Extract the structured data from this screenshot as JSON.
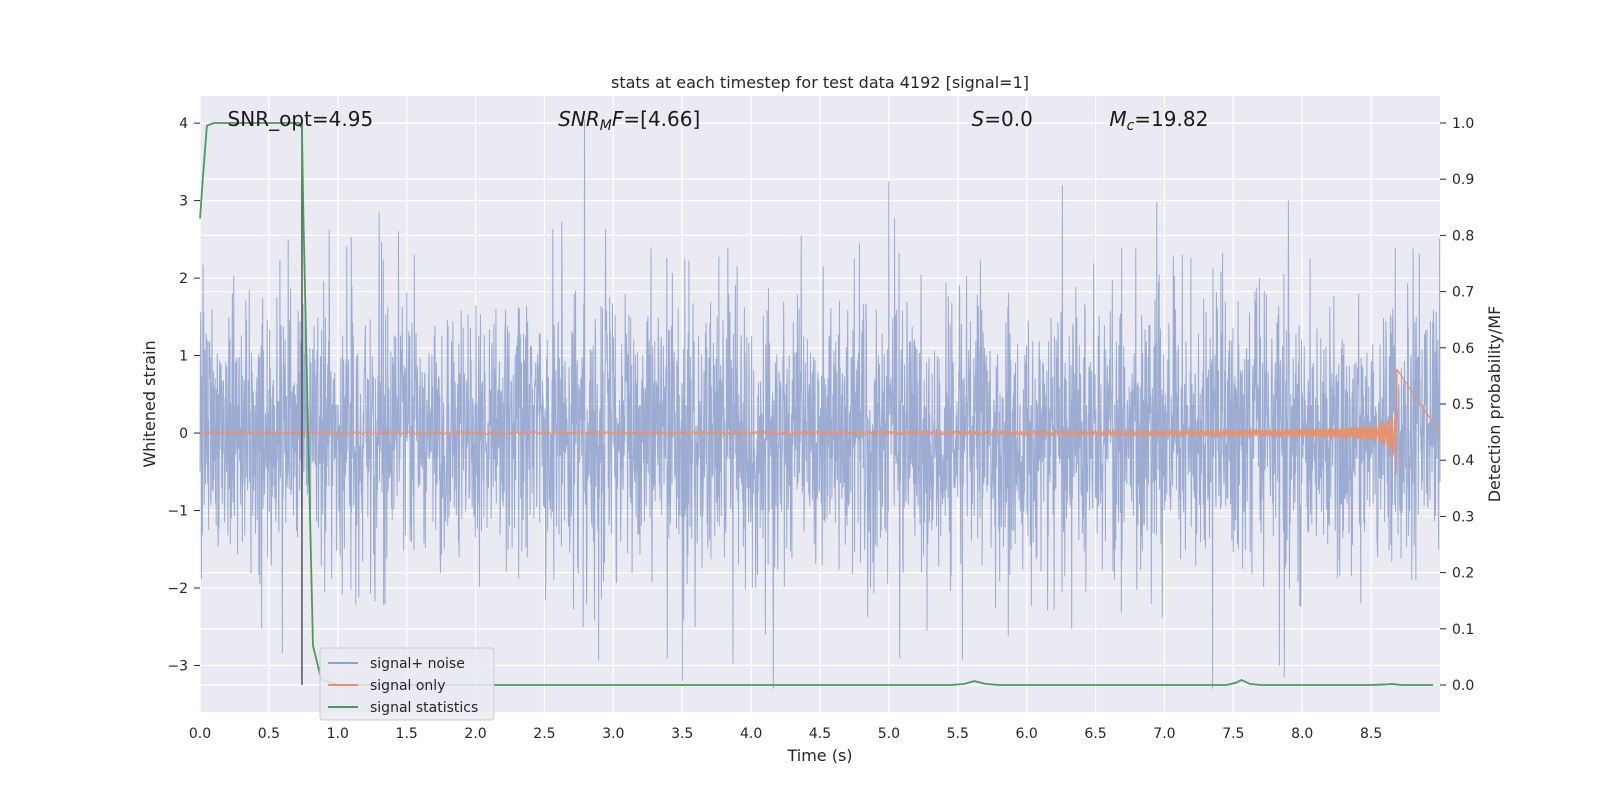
{
  "chart_data": {
    "type": "line",
    "title": "stats at each timestep for test data 4192 [signal=1]",
    "xlabel": "Time (s)",
    "ylabel_left": "Whitened strain",
    "ylabel_right": "Detection probability/MF",
    "xlim": [
      0.0,
      9.0
    ],
    "ylim_left": [
      -3.6,
      4.35
    ],
    "ylim_right": [
      -0.048,
      1.048
    ],
    "x_ticks": [
      0.0,
      0.5,
      1.0,
      1.5,
      2.0,
      2.5,
      3.0,
      3.5,
      4.0,
      4.5,
      5.0,
      5.5,
      6.0,
      6.5,
      7.0,
      7.5,
      8.0,
      8.5
    ],
    "x_tick_labels": [
      "0.0",
      "0.5",
      "1.0",
      "1.5",
      "2.0",
      "2.5",
      "3.0",
      "3.5",
      "4.0",
      "4.5",
      "5.0",
      "5.5",
      "6.0",
      "6.5",
      "7.0",
      "7.5",
      "8.0",
      "8.5"
    ],
    "y_left_ticks": [
      -3,
      -2,
      -1,
      0,
      1,
      2,
      3,
      4
    ],
    "y_left_tick_labels": [
      "−3",
      "−2",
      "−1",
      "0",
      "1",
      "2",
      "3",
      "4"
    ],
    "y_right_ticks": [
      0.0,
      0.1,
      0.2,
      0.3,
      0.4,
      0.5,
      0.6,
      0.7,
      0.8,
      0.9,
      1.0
    ],
    "y_right_tick_labels": [
      "0.0",
      "0.1",
      "0.2",
      "0.3",
      "0.4",
      "0.5",
      "0.6",
      "0.7",
      "0.8",
      "0.9",
      "1.0"
    ],
    "grid": true,
    "legend_position": "lower-left",
    "annotations": [
      {
        "id": "snr-opt",
        "text": "SNR_opt=4.95",
        "x": 0.2,
        "y": 4.0
      },
      {
        "id": "snr-mf",
        "text_italic": "SNR",
        "sub": "M",
        "text_italic2": "F",
        "text_rest": "=[4.66]",
        "x": 2.6,
        "y": 4.0
      },
      {
        "id": "s-value",
        "text_italic": "S",
        "text_rest": "=0.0",
        "x": 5.6,
        "y": 4.0
      },
      {
        "id": "mc-value",
        "text_italic": "M",
        "sub": "c",
        "text_rest": "=19.82",
        "x": 6.6,
        "y": 4.0
      }
    ],
    "vertical_line": {
      "x": 0.74,
      "y_from": -3.25,
      "y_to": 4.0
    },
    "series": [
      {
        "name": "signal+ noise",
        "axis": "left",
        "color": "#8da0cb",
        "note": "dense noise trace, approx. std 0.9, spanning x 0.0 to 9.0",
        "noise_std": 0.9,
        "x_range": [
          0.0,
          9.0
        ],
        "spikes": [
          {
            "x": 2.79,
            "y": 4.05
          },
          {
            "x": 2.78,
            "y": -2.5
          },
          {
            "x": 4.16,
            "y": -3.3
          },
          {
            "x": 3.5,
            "y": -3.2
          },
          {
            "x": 5.0,
            "y": 3.25
          },
          {
            "x": 5.08,
            "y": -2.9
          },
          {
            "x": 6.26,
            "y": 3.2
          },
          {
            "x": 7.35,
            "y": -3.3
          },
          {
            "x": 7.87,
            "y": -3.15
          },
          {
            "x": 7.9,
            "y": 3.0
          },
          {
            "x": 1.3,
            "y": 2.85
          },
          {
            "x": 0.64,
            "y": 2.5
          }
        ]
      },
      {
        "name": "signal only",
        "axis": "left",
        "color": "#e5926e",
        "note": "chirp signal growing in amplitude, ending at x approx 8.69",
        "x_range": [
          0.0,
          8.69
        ],
        "peak_amplitude": 0.85
      },
      {
        "name": "signal statistics",
        "axis": "right",
        "color": "#4c9a5a",
        "x": [
          0.0,
          0.02,
          0.05,
          0.1,
          0.2,
          0.4,
          0.6,
          0.72,
          0.74,
          0.75,
          0.78,
          0.82,
          0.88,
          1.0,
          2.0,
          3.0,
          4.0,
          5.0,
          5.45,
          5.55,
          5.62,
          5.7,
          5.8,
          6.0,
          7.0,
          7.45,
          7.52,
          7.56,
          7.62,
          7.7,
          8.0,
          8.5,
          8.6,
          8.65,
          8.72,
          8.95
        ],
        "y": [
          0.83,
          0.9,
          0.995,
          1.0,
          1.0,
          1.0,
          1.0,
          1.0,
          0.99,
          0.84,
          0.5,
          0.07,
          0.01,
          0.0,
          0.0,
          0.0,
          0.0,
          0.0,
          0.0,
          0.002,
          0.007,
          0.002,
          0.0,
          0.0,
          0.0,
          0.0,
          0.004,
          0.009,
          0.002,
          0.0,
          0.0,
          0.0,
          0.001,
          0.002,
          0.0,
          0.0
        ]
      }
    ]
  }
}
